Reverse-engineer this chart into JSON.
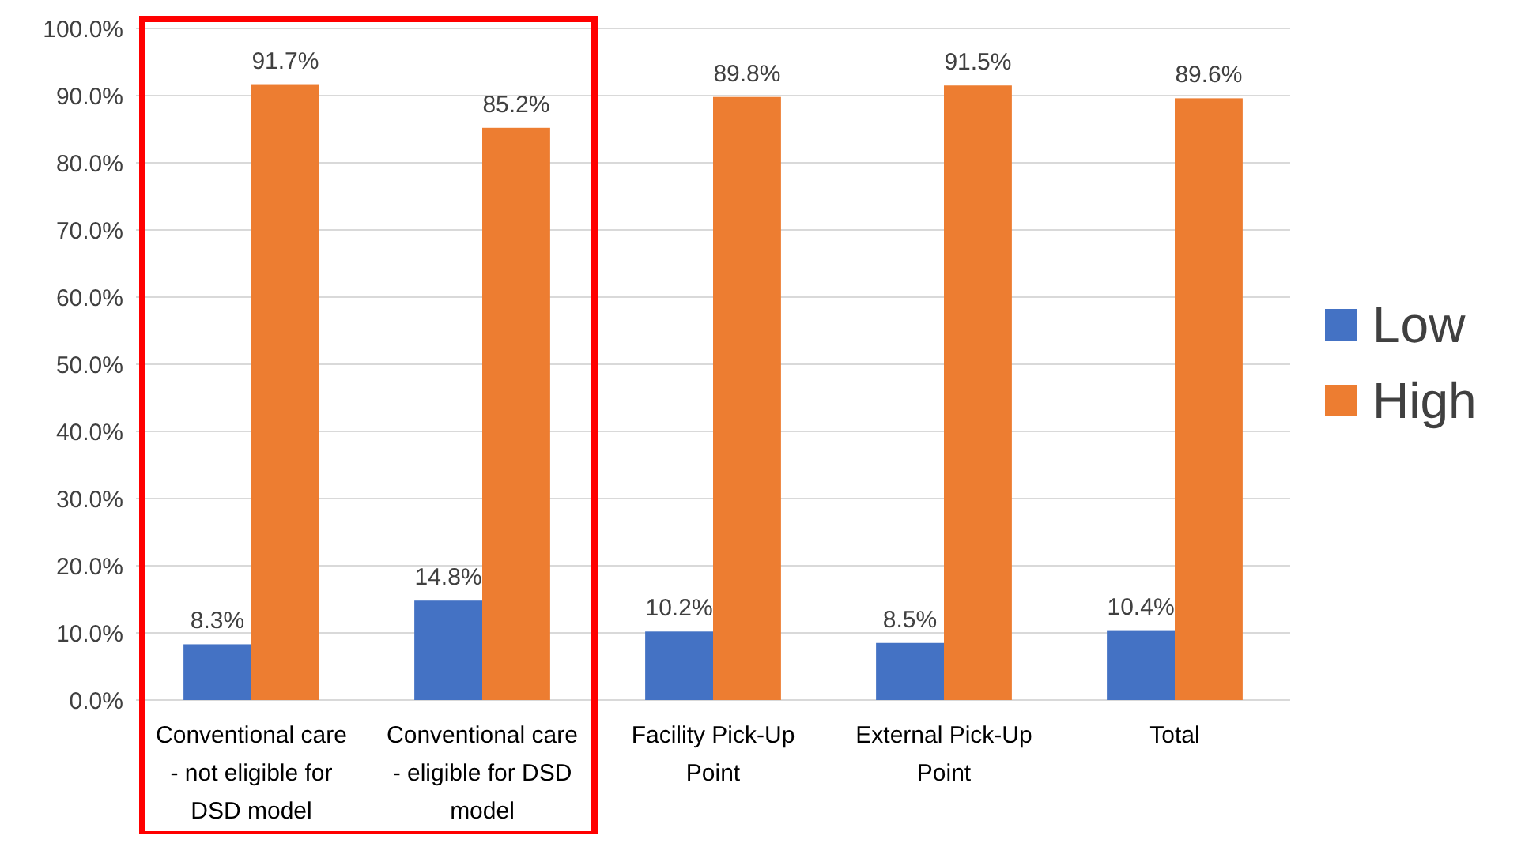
{
  "chart_data": {
    "type": "bar",
    "categories": [
      "Conventional care - not eligible for DSD model",
      "Conventional care - eligible for DSD model",
      "Facility Pick-Up Point",
      "External Pick-Up Point",
      "Total"
    ],
    "series": [
      {
        "name": "Low",
        "color": "#4472c4",
        "values": [
          8.3,
          14.8,
          10.2,
          8.5,
          10.4
        ],
        "value_labels": [
          "8.3%",
          "14.8%",
          "10.2%",
          "8.5%",
          "10.4%"
        ]
      },
      {
        "name": "High",
        "color": "#ed7d31",
        "values": [
          91.7,
          85.2,
          89.8,
          91.5,
          89.6
        ],
        "value_labels": [
          "91.7%",
          "85.2%",
          "89.8%",
          "91.5%",
          "89.6%"
        ]
      }
    ],
    "ylim": [
      0,
      100
    ],
    "yticks": [
      {
        "value": 0,
        "label": "0.0%"
      },
      {
        "value": 10,
        "label": "10.0%"
      },
      {
        "value": 20,
        "label": "20.0%"
      },
      {
        "value": 30,
        "label": "30.0%"
      },
      {
        "value": 40,
        "label": "40.0%"
      },
      {
        "value": 50,
        "label": "50.0%"
      },
      {
        "value": 60,
        "label": "60.0%"
      },
      {
        "value": 70,
        "label": "70.0%"
      },
      {
        "value": 80,
        "label": "80.0%"
      },
      {
        "value": 90,
        "label": "90.0%"
      },
      {
        "value": 100,
        "label": "100.0%"
      }
    ],
    "grid": "y",
    "legend": "right"
  }
}
